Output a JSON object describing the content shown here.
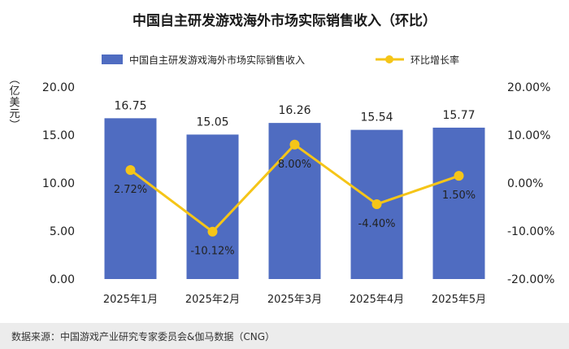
{
  "chart_data": {
    "type": "bar",
    "title": "中国自主研发游戏海外市场实际销售收入（环比）",
    "categories": [
      "2025年1月",
      "2025年2月",
      "2025年3月",
      "2025年4月",
      "2025年5月"
    ],
    "series": [
      {
        "name": "中国自主研发游戏海外市场实际销售收入",
        "type": "bar",
        "axis": "left",
        "values": [
          16.75,
          15.05,
          16.26,
          15.54,
          15.77
        ],
        "labels": [
          "16.75",
          "15.05",
          "16.26",
          "15.54",
          "15.77"
        ]
      },
      {
        "name": "环比增长率",
        "type": "line",
        "axis": "right",
        "values": [
          2.72,
          -10.12,
          8.0,
          -4.4,
          1.5
        ],
        "labels": [
          "2.72%",
          "-10.12%",
          "8.00%",
          "-4.40%",
          "1.50%"
        ]
      }
    ],
    "ylabel": "（亿美元）",
    "ylim": [
      0,
      20
    ],
    "yticks": [
      "0.00",
      "5.00",
      "10.00",
      "15.00",
      "20.00"
    ],
    "y2lim": [
      -20,
      20
    ],
    "y2ticks": [
      "-20.00%",
      "-10.00%",
      "0.00%",
      "10.00%",
      "20.00%"
    ],
    "legend_position": "top",
    "grid": false
  },
  "colors": {
    "bar": "#4f6cc1",
    "line": "#f5c518"
  },
  "footer": {
    "source": "数据来源：中国游戏产业研究专家委员会&伽马数据（CNG）"
  }
}
